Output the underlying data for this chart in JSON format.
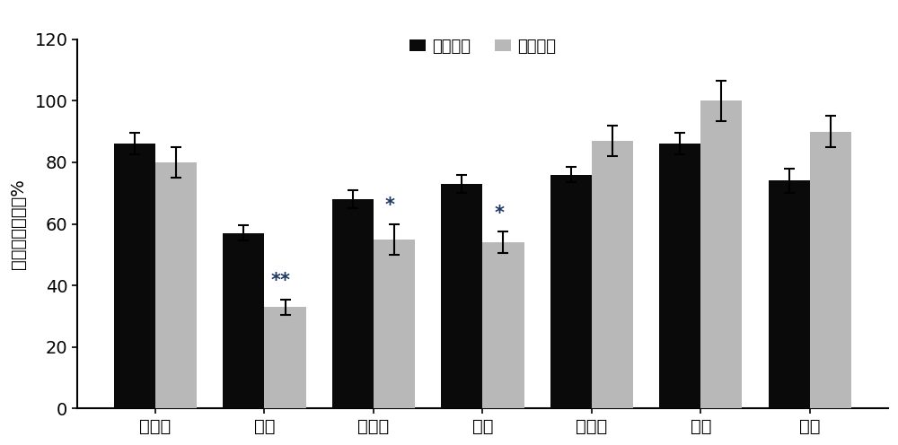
{
  "categories": [
    "本地菊",
    "奥金",
    "丰韵里",
    "早黄",
    "四季菊",
    "奥彩",
    "奥红"
  ],
  "high_temp_values": [
    86,
    57,
    68,
    73,
    76,
    86,
    74
  ],
  "recovery_values": [
    80,
    33,
    55,
    54,
    87,
    100,
    90
  ],
  "high_temp_errors": [
    3.5,
    2.5,
    3.0,
    3.0,
    2.5,
    3.5,
    4.0
  ],
  "recovery_errors": [
    5.0,
    2.5,
    5.0,
    3.5,
    5.0,
    6.5,
    5.0
  ],
  "significance": [
    "",
    "**",
    "*",
    "*",
    "",
    "",
    ""
  ],
  "sig_color": "#1F3864",
  "bar_color_high": "#0a0a0a",
  "bar_color_recovery": "#B8B8B8",
  "ylabel": "幼槽下茎萎蔻率%",
  "legend_high": "高温处理",
  "legend_recovery": "恢复处理",
  "ylim": [
    0,
    120
  ],
  "yticks": [
    0,
    20,
    40,
    60,
    80,
    100,
    120
  ],
  "bar_width": 0.38,
  "label_fontsize": 14,
  "tick_fontsize": 14,
  "legend_fontsize": 13,
  "ylabel_fontsize": 14
}
